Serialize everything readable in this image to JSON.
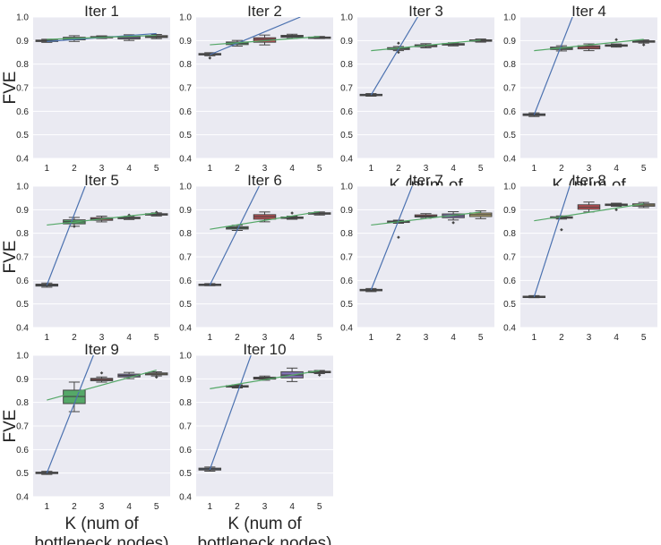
{
  "figure": {
    "ylabel": "FVE",
    "xlabel_line1": "K (num of",
    "xlabel_line2": "bottleneck nodes)"
  },
  "chart_data": [
    {
      "type": "box",
      "title": "Iter 1",
      "categories": [
        "1",
        "2",
        "3",
        "4",
        "5"
      ],
      "ylim": [
        0.4,
        1.0
      ],
      "yticks": [
        "0.4",
        "0.5",
        "0.6",
        "0.7",
        "0.8",
        "0.9",
        "1.0"
      ],
      "boxes": [
        [
          0.896,
          0.899,
          0.902
        ],
        [
          0.903,
          0.907,
          0.914
        ],
        [
          0.912,
          0.915,
          0.917
        ],
        [
          0.907,
          0.913,
          0.918
        ],
        [
          0.913,
          0.917,
          0.921
        ]
      ],
      "fliers": [
        [],
        [],
        [],
        [],
        []
      ],
      "fit_lines": [
        {
          "color": "#4c72b0",
          "points": [
            [
              1,
              0.896
            ],
            [
              5,
              0.93
            ]
          ]
        },
        {
          "color": "#55a868",
          "points": [
            [
              1,
              0.905
            ],
            [
              5,
              0.922
            ]
          ]
        }
      ]
    },
    {
      "type": "box",
      "title": "Iter 2",
      "categories": [
        "1",
        "2",
        "3",
        "4",
        "5"
      ],
      "ylim": [
        0.4,
        1.0
      ],
      "yticks": [
        "0.4",
        "0.5",
        "0.6",
        "0.7",
        "0.8",
        "0.9",
        "1.0"
      ],
      "boxes": [
        [
          0.839,
          0.842,
          0.845
        ],
        [
          0.883,
          0.889,
          0.894
        ],
        [
          0.893,
          0.905,
          0.912
        ],
        [
          0.914,
          0.918,
          0.922
        ],
        [
          0.911,
          0.913,
          0.915
        ]
      ],
      "fliers": [
        [
          0.826
        ],
        [],
        [],
        [],
        []
      ],
      "fit_lines": [
        {
          "color": "#4c72b0",
          "points": [
            [
              1,
              0.84
            ],
            [
              4.3,
              1.0
            ]
          ]
        },
        {
          "color": "#55a868",
          "points": [
            [
              1,
              0.882
            ],
            [
              5,
              0.917
            ]
          ]
        }
      ]
    },
    {
      "type": "box",
      "title": "Iter 3",
      "categories": [
        "1",
        "2",
        "3",
        "4",
        "5"
      ],
      "ylim": [
        0.4,
        1.0
      ],
      "yticks": [
        "0.4",
        "0.5",
        "0.6",
        "0.7",
        "0.8",
        "0.9",
        "1.0"
      ],
      "boxes": [
        [
          0.667,
          0.669,
          0.672
        ],
        [
          0.862,
          0.866,
          0.87
        ],
        [
          0.874,
          0.878,
          0.882
        ],
        [
          0.881,
          0.884,
          0.887
        ],
        [
          0.897,
          0.9,
          0.903
        ]
      ],
      "fliers": [
        [],
        [
          0.85,
          0.889
        ],
        [],
        [],
        []
      ],
      "fit_lines": [
        {
          "color": "#4c72b0",
          "points": [
            [
              1,
              0.669
            ],
            [
              2.7,
              1.0
            ]
          ]
        },
        {
          "color": "#55a868",
          "points": [
            [
              1,
              0.857
            ],
            [
              5,
              0.902
            ]
          ]
        }
      ]
    },
    {
      "type": "box",
      "title": "Iter 4",
      "categories": [
        "1",
        "2",
        "3",
        "4",
        "5"
      ],
      "ylim": [
        0.4,
        1.0
      ],
      "yticks": [
        "0.4",
        "0.5",
        "0.6",
        "0.7",
        "0.8",
        "0.9",
        "1.0"
      ],
      "boxes": [
        [
          0.582,
          0.585,
          0.589
        ],
        [
          0.862,
          0.867,
          0.872
        ],
        [
          0.865,
          0.872,
          0.878
        ],
        [
          0.876,
          0.879,
          0.882
        ],
        [
          0.893,
          0.896,
          0.899
        ]
      ],
      "fliers": [
        [],
        [],
        [],
        [
          0.904
        ],
        [
          0.882
        ]
      ],
      "fit_lines": [
        {
          "color": "#4c72b0",
          "points": [
            [
              1,
              0.585
            ],
            [
              2.4,
              1.0
            ]
          ]
        },
        {
          "color": "#55a868",
          "points": [
            [
              1,
              0.857
            ],
            [
              5,
              0.905
            ]
          ]
        }
      ]
    },
    {
      "type": "box",
      "title": "Iter 5",
      "categories": [
        "1",
        "2",
        "3",
        "4",
        "5"
      ],
      "ylim": [
        0.4,
        1.0
      ],
      "yticks": [
        "0.4",
        "0.5",
        "0.6",
        "0.7",
        "0.8",
        "0.9",
        "1.0"
      ],
      "boxes": [
        [
          0.576,
          0.58,
          0.584
        ],
        [
          0.84,
          0.849,
          0.857
        ],
        [
          0.855,
          0.861,
          0.866
        ],
        [
          0.862,
          0.865,
          0.868
        ],
        [
          0.877,
          0.88,
          0.883
        ]
      ],
      "fliers": [
        [],
        [
          0.829
        ],
        [],
        [
          0.877
        ],
        [
          0.889
        ]
      ],
      "fit_lines": [
        {
          "color": "#4c72b0",
          "points": [
            [
              1,
              0.58
            ],
            [
              2.4,
              1.0
            ]
          ]
        },
        {
          "color": "#55a868",
          "points": [
            [
              1,
              0.835
            ],
            [
              5,
              0.886
            ]
          ]
        }
      ]
    },
    {
      "type": "box",
      "title": "Iter 6",
      "categories": [
        "1",
        "2",
        "3",
        "4",
        "5"
      ],
      "ylim": [
        0.4,
        1.0
      ],
      "yticks": [
        "0.4",
        "0.5",
        "0.6",
        "0.7",
        "0.8",
        "0.9",
        "1.0"
      ],
      "boxes": [
        [
          0.58,
          0.582,
          0.584
        ],
        [
          0.818,
          0.823,
          0.828
        ],
        [
          0.86,
          0.87,
          0.879
        ],
        [
          0.863,
          0.866,
          0.869
        ],
        [
          0.881,
          0.884,
          0.887
        ]
      ],
      "fliers": [
        [],
        [],
        [],
        [
          0.886
        ],
        []
      ],
      "fit_lines": [
        {
          "color": "#4c72b0",
          "points": [
            [
              1,
              0.58
            ],
            [
              2.8,
              1.0
            ]
          ]
        },
        {
          "color": "#55a868",
          "points": [
            [
              1,
              0.817
            ],
            [
              5,
              0.892
            ]
          ]
        }
      ]
    },
    {
      "type": "box",
      "title": "Iter 7",
      "categories": [
        "1",
        "2",
        "3",
        "4",
        "5"
      ],
      "ylim": [
        0.4,
        1.0
      ],
      "yticks": [
        "0.4",
        "0.5",
        "0.6",
        "0.7",
        "0.8",
        "0.9",
        "1.0"
      ],
      "boxes": [
        [
          0.556,
          0.559,
          0.562
        ],
        [
          0.846,
          0.849,
          0.852
        ],
        [
          0.869,
          0.873,
          0.878
        ],
        [
          0.866,
          0.874,
          0.882
        ],
        [
          0.871,
          0.879,
          0.886
        ]
      ],
      "fliers": [
        [],
        [
          0.783
        ],
        [],
        [
          0.845
        ],
        []
      ],
      "fit_lines": [
        {
          "color": "#4c72b0",
          "points": [
            [
              1,
              0.56
            ],
            [
              2.5,
              1.0
            ]
          ]
        },
        {
          "color": "#55a868",
          "points": [
            [
              1,
              0.835
            ],
            [
              5,
              0.89
            ]
          ]
        }
      ]
    },
    {
      "type": "box",
      "title": "Iter 8",
      "categories": [
        "1",
        "2",
        "3",
        "4",
        "5"
      ],
      "ylim": [
        0.4,
        1.0
      ],
      "yticks": [
        "0.4",
        "0.5",
        "0.6",
        "0.7",
        "0.8",
        "0.9",
        "1.0"
      ],
      "boxes": [
        [
          0.529,
          0.531,
          0.533
        ],
        [
          0.864,
          0.867,
          0.87
        ],
        [
          0.902,
          0.911,
          0.921
        ],
        [
          0.918,
          0.921,
          0.924
        ],
        [
          0.915,
          0.92,
          0.925
        ]
      ],
      "fliers": [
        [],
        [
          0.815
        ],
        [],
        [
          0.9
        ],
        []
      ],
      "fit_lines": [
        {
          "color": "#4c72b0",
          "points": [
            [
              1,
              0.53
            ],
            [
              2.3,
              1.0
            ]
          ]
        },
        {
          "color": "#55a868",
          "points": [
            [
              1,
              0.853
            ],
            [
              5,
              0.925
            ]
          ]
        }
      ]
    },
    {
      "type": "box",
      "title": "Iter 9",
      "categories": [
        "1",
        "2",
        "3",
        "4",
        "5"
      ],
      "ylim": [
        0.4,
        1.0
      ],
      "yticks": [
        "0.4",
        "0.5",
        "0.6",
        "0.7",
        "0.8",
        "0.9",
        "1.0"
      ],
      "boxes": [
        [
          0.498,
          0.501,
          0.504
        ],
        [
          0.795,
          0.825,
          0.852
        ],
        [
          0.892,
          0.897,
          0.902
        ],
        [
          0.908,
          0.914,
          0.92
        ],
        [
          0.917,
          0.921,
          0.925
        ]
      ],
      "fliers": [
        [],
        [],
        [
          0.925
        ],
        [],
        [
          0.907
        ]
      ],
      "fit_lines": [
        {
          "color": "#4c72b0",
          "points": [
            [
              1,
              0.5
            ],
            [
              2.7,
              1.0
            ]
          ]
        },
        {
          "color": "#55a868",
          "points": [
            [
              1,
              0.81
            ],
            [
              5,
              0.937
            ]
          ]
        }
      ]
    },
    {
      "type": "box",
      "title": "Iter 10",
      "categories": [
        "1",
        "2",
        "3",
        "4",
        "5"
      ],
      "ylim": [
        0.4,
        1.0
      ],
      "yticks": [
        "0.4",
        "0.5",
        "0.6",
        "0.7",
        "0.8",
        "0.9",
        "1.0"
      ],
      "boxes": [
        [
          0.513,
          0.517,
          0.521
        ],
        [
          0.865,
          0.868,
          0.871
        ],
        [
          0.899,
          0.903,
          0.907
        ],
        [
          0.904,
          0.916,
          0.93
        ],
        [
          0.926,
          0.929,
          0.932
        ]
      ],
      "fliers": [
        [],
        [],
        [],
        [],
        [
          0.916
        ]
      ],
      "fit_lines": [
        {
          "color": "#4c72b0",
          "points": [
            [
              1,
              0.515
            ],
            [
              2.5,
              1.0
            ]
          ]
        },
        {
          "color": "#55a868",
          "points": [
            [
              1,
              0.858
            ],
            [
              5,
              0.935
            ]
          ]
        }
      ]
    }
  ],
  "colors": {
    "panel_bg": "#eaeaf2",
    "grid": "#ffffff",
    "box_fills": [
      "#4c72b0",
      "#55a868",
      "#c44e52",
      "#8172b2",
      "#ccb974"
    ],
    "median": "#444444",
    "text": "#262626"
  }
}
